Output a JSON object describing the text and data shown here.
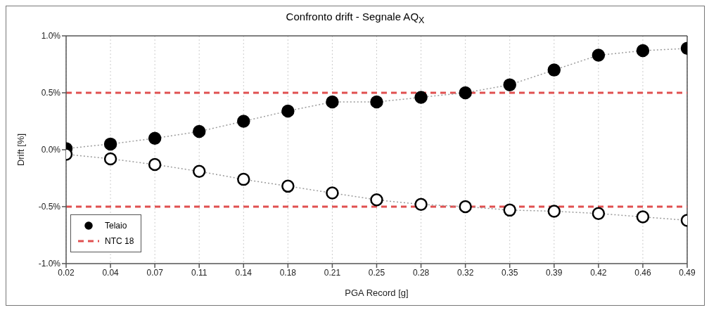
{
  "chart_data": {
    "type": "line",
    "title": "Confronto drift - Segnale AQ$_{X}$",
    "xlabel": "PGA Record [g]",
    "ylabel": "Drift [%]",
    "categories": [
      "0.02",
      "0.04",
      "0.07",
      "0.11",
      "0.14",
      "0.18",
      "0.21",
      "0.25",
      "0.28",
      "0.32",
      "0.35",
      "0.39",
      "0.42",
      "0.46",
      "0.49"
    ],
    "series": [
      {
        "name": "Telaio",
        "color": "#000000",
        "values": [
          0.01,
          0.05,
          0.1,
          0.16,
          0.25,
          0.34,
          0.42,
          0.42,
          0.46,
          0.5,
          0.57,
          0.7,
          0.83,
          0.87,
          0.89
        ]
      },
      {
        "color": "#ffffff",
        "values": [
          -0.04,
          -0.08,
          -0.13,
          -0.19,
          -0.26,
          -0.32,
          -0.38,
          -0.44,
          -0.48,
          -0.5,
          -0.53,
          -0.54,
          -0.56,
          -0.59,
          -0.62
        ]
      }
    ],
    "ylim": [
      -1,
      1
    ],
    "yticks": [
      {
        "value": -1,
        "label": "-1.0%"
      },
      {
        "value": -0.5,
        "label": "-0.5%"
      },
      {
        "value": 0,
        "label": "0.0%"
      },
      {
        "value": 0.5,
        "label": "0.5%"
      },
      {
        "value": 1,
        "label": "1.0%"
      }
    ],
    "ref_lines": [
      {
        "axis": "y",
        "value": 0.5,
        "label": "NTC 18",
        "color": "#e05050",
        "line_style": "dashed"
      },
      {
        "axis": "y",
        "value": -0.5,
        "color": "#e05050",
        "line_style": "dashed"
      }
    ],
    "grid": "x",
    "legend": "bottom left",
    "marker": "circle",
    "line_style": "dotted"
  }
}
